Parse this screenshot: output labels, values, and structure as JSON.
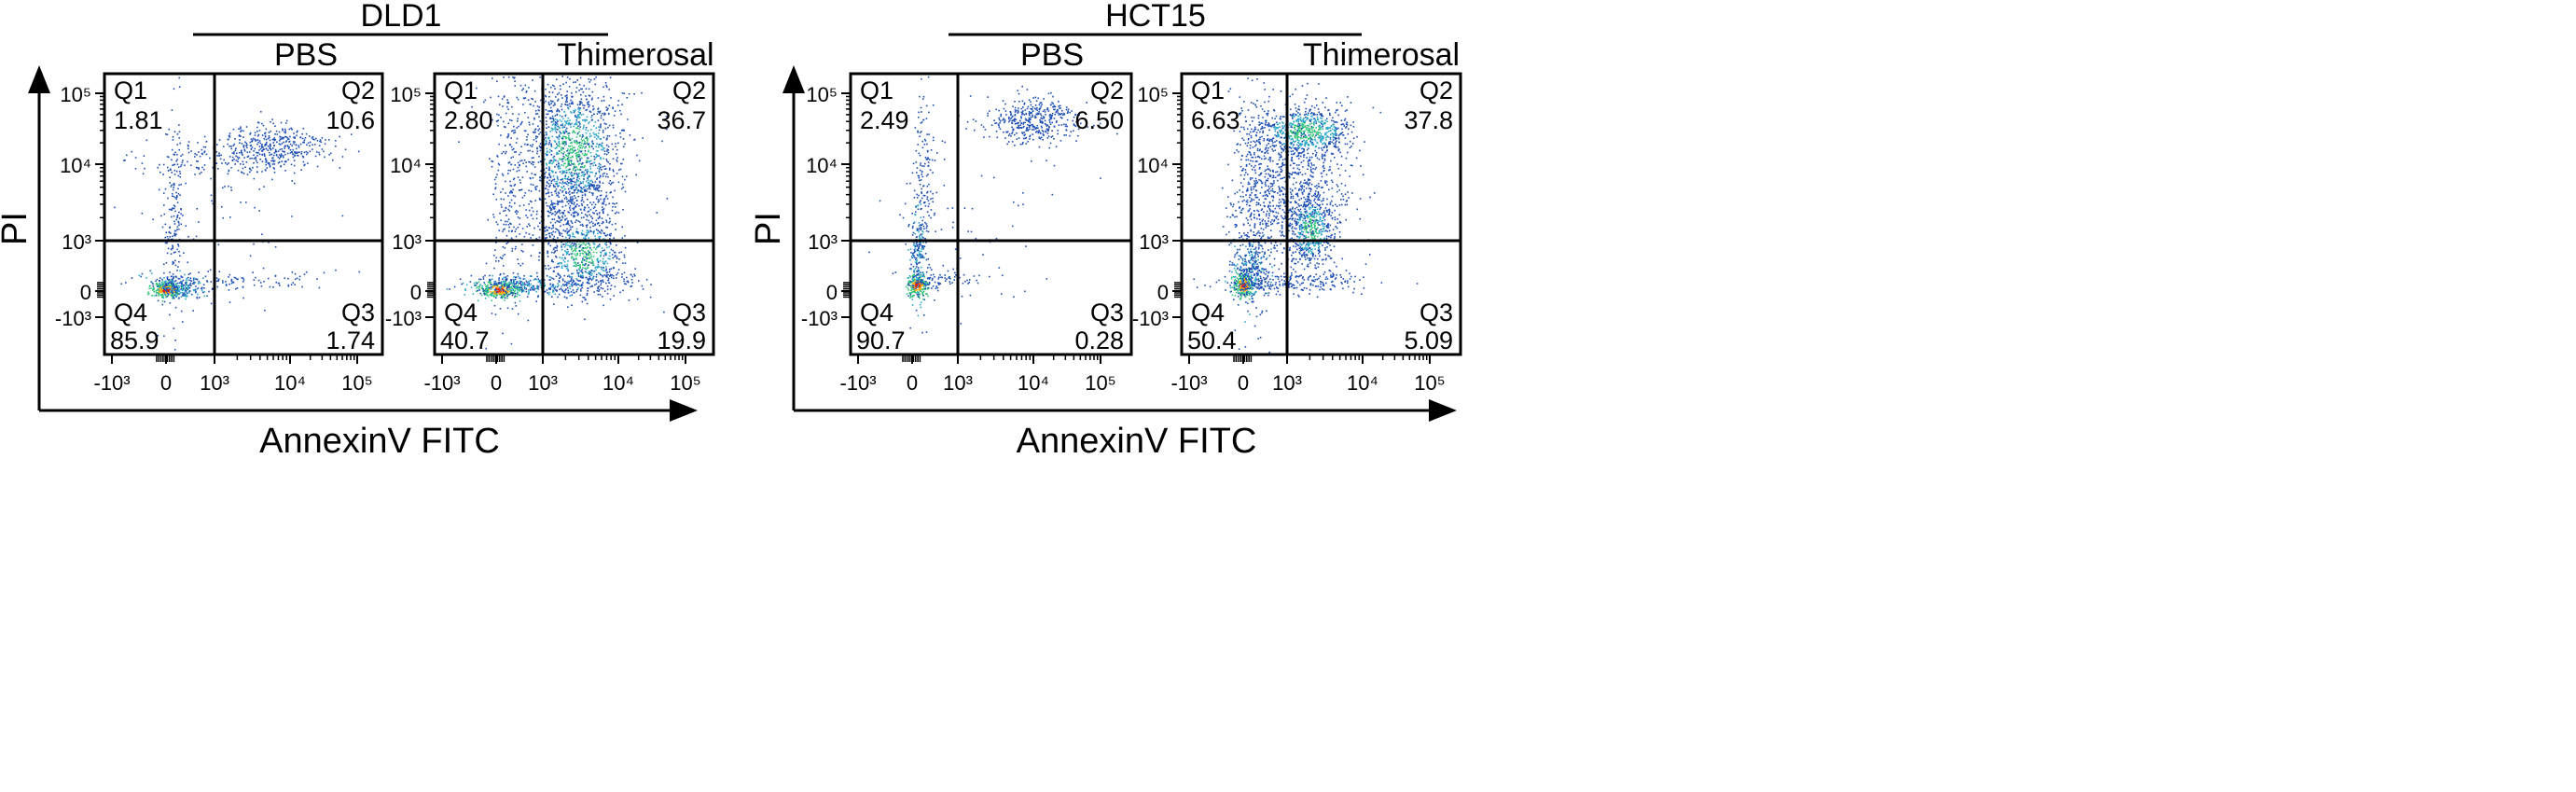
{
  "y_axis_label": "PI",
  "x_axis_label": "AnnexinV FITC",
  "colors": {
    "axis": "#000000",
    "density_low": "#1f4fb4",
    "density_mid": "#2fc0a0",
    "density_high": "#e00000"
  },
  "groups": [
    {
      "title": "DLD1"
    },
    {
      "title": "HCT15"
    }
  ],
  "chart_data": [
    {
      "type": "scatter",
      "group": "DLD1",
      "title": "PBS",
      "xlabel": "AnnexinV FITC",
      "ylabel": "PI",
      "x_ticks": [
        "-10³",
        "0",
        "10³",
        "10⁴",
        "10⁵"
      ],
      "y_ticks": [
        "10⁵",
        "10⁴",
        "10³",
        "0",
        "-10³"
      ],
      "quadrants": [
        {
          "name": "Q1",
          "value": "1.81"
        },
        {
          "name": "Q2",
          "value": "10.6"
        },
        {
          "name": "Q3",
          "value": "1.74"
        },
        {
          "name": "Q4",
          "value": "85.9"
        }
      ]
    },
    {
      "type": "scatter",
      "group": "DLD1",
      "title": "Thimerosal",
      "xlabel": "AnnexinV FITC",
      "ylabel": "PI",
      "x_ticks": [
        "-10³",
        "0",
        "10³",
        "10⁴",
        "10⁵"
      ],
      "y_ticks": [
        "10⁵",
        "10⁴",
        "10³",
        "0",
        "-10³"
      ],
      "quadrants": [
        {
          "name": "Q1",
          "value": "2.80"
        },
        {
          "name": "Q2",
          "value": "36.7"
        },
        {
          "name": "Q3",
          "value": "19.9"
        },
        {
          "name": "Q4",
          "value": "40.7"
        }
      ]
    },
    {
      "type": "scatter",
      "group": "HCT15",
      "title": "PBS",
      "xlabel": "AnnexinV FITC",
      "ylabel": "PI",
      "x_ticks": [
        "-10³",
        "0",
        "10³",
        "10⁴",
        "10⁵"
      ],
      "y_ticks": [
        "10⁵",
        "10⁴",
        "10³",
        "0",
        "-10³"
      ],
      "quadrants": [
        {
          "name": "Q1",
          "value": "2.49"
        },
        {
          "name": "Q2",
          "value": "6.50"
        },
        {
          "name": "Q3",
          "value": "0.28"
        },
        {
          "name": "Q4",
          "value": "90.7"
        }
      ]
    },
    {
      "type": "scatter",
      "group": "HCT15",
      "title": "Thimerosal",
      "xlabel": "AnnexinV FITC",
      "ylabel": "PI",
      "x_ticks": [
        "-10³",
        "0",
        "10³",
        "10⁴",
        "10⁵"
      ],
      "y_ticks": [
        "10⁵",
        "10⁴",
        "10³",
        "0",
        "-10³"
      ],
      "quadrants": [
        {
          "name": "Q1",
          "value": "6.63"
        },
        {
          "name": "Q2",
          "value": "37.8"
        },
        {
          "name": "Q3",
          "value": "5.09"
        },
        {
          "name": "Q4",
          "value": "50.4"
        }
      ]
    }
  ]
}
